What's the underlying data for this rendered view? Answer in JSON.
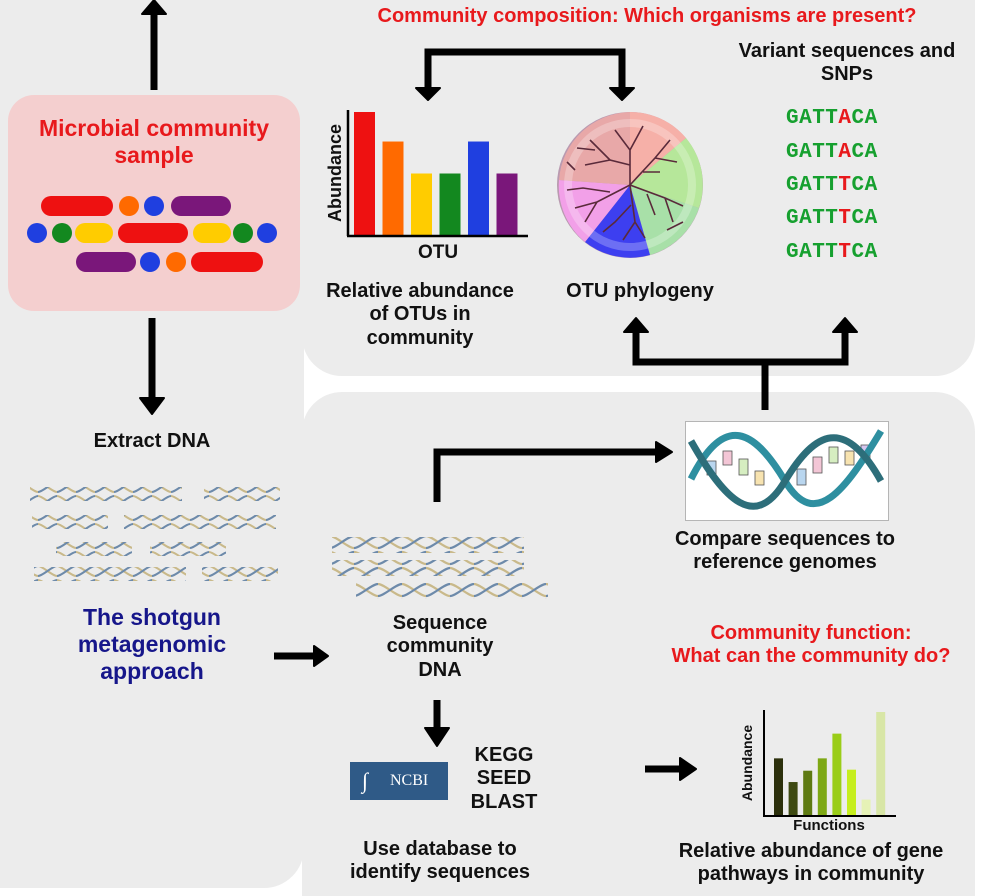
{
  "left": {
    "sample_line1": "Microbial community",
    "sample_line2": "sample",
    "extract": "Extract DNA",
    "approach_line1": "The shotgun",
    "approach_line2": "metagenomic",
    "approach_line3": "approach"
  },
  "composition": {
    "title": "Community composition: Which organisms are present?",
    "variants_line1": "Variant sequences and",
    "variants_line2": "SNPs",
    "abundance_axis": "Abundance",
    "otu_axis": "OTU",
    "rel_line1": "Relative abundance",
    "rel_line2": "of  OTUs in",
    "rel_line3": "community",
    "phylogeny": "OTU phylogeny",
    "sequences": [
      {
        "pre": "GATT",
        "snp": "A",
        "post": "CA"
      },
      {
        "pre": "GATT",
        "snp": "A",
        "post": "CA"
      },
      {
        "pre": "GATT",
        "snp": "T",
        "post": "CA"
      },
      {
        "pre": "GATT",
        "snp": "T",
        "post": "CA"
      },
      {
        "pre": "GATT",
        "snp": "T",
        "post": "CA"
      }
    ]
  },
  "function": {
    "compare_line1": "Compare sequences to",
    "compare_line2": "reference genomes",
    "sequence_line1": "Sequence",
    "sequence_line2": "community",
    "sequence_line3": "DNA",
    "db_kegg": "KEGG",
    "db_seed": "SEED",
    "db_blast": "BLAST",
    "ncbi": "NCBI",
    "use_line1": "Use database to",
    "use_line2": "identify sequences",
    "title_line1": "Community function:",
    "title_line2": "What can the community do?",
    "abundance_axis": "Abundance",
    "functions_axis": "Functions",
    "gene_line1": "Relative abundance of gene",
    "gene_line2": "pathways in community"
  },
  "chart_data": [
    {
      "type": "bar",
      "xlabel": "OTU",
      "ylabel": "Abundance",
      "ylim": [
        0,
        100
      ],
      "values": [
        100,
        76,
        50,
        50,
        76,
        50
      ],
      "colors": [
        "#ee1111",
        "#ff6a00",
        "#ffcc00",
        "#13881f",
        "#1f3fe0",
        "#7a177a"
      ]
    },
    {
      "type": "bar",
      "xlabel": "Functions",
      "ylabel": "Abundance",
      "ylim": [
        0,
        100
      ],
      "values": [
        55,
        32,
        43,
        55,
        79,
        44,
        15,
        100
      ],
      "colors": [
        "#2c300c",
        "#3e4a12",
        "#5e7a12",
        "#7ea814",
        "#9acd18",
        "#c6ee1e",
        "#e6f2b6",
        "#d8e6a6"
      ]
    }
  ]
}
